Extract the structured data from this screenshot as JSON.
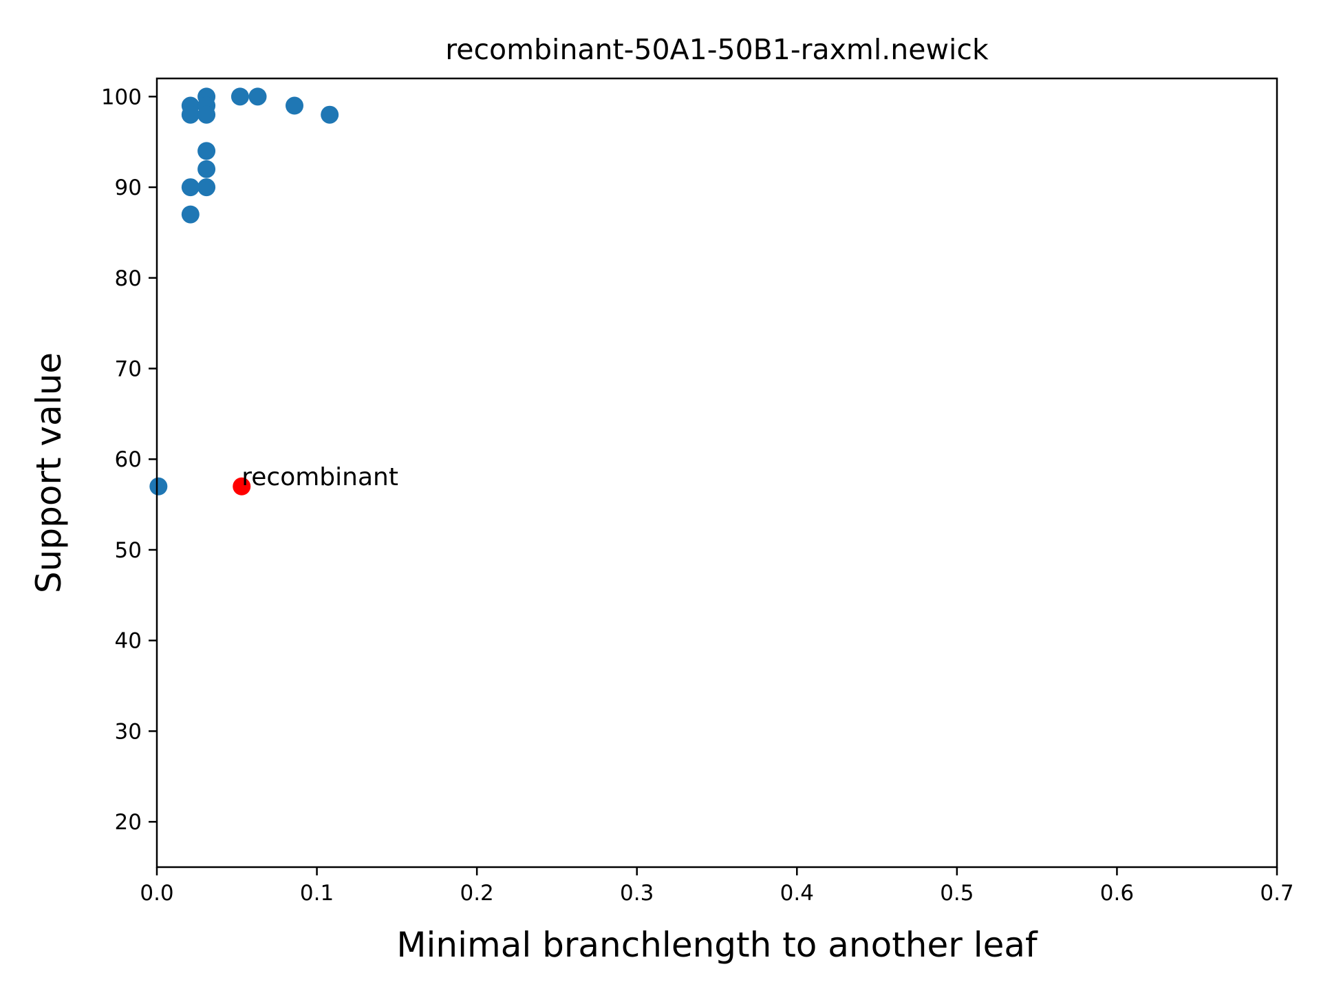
{
  "chart_data": {
    "type": "scatter",
    "title": "recombinant-50A1-50B1-raxml.newick",
    "xlabel": "Minimal branchlength to another leaf",
    "ylabel": "Support value",
    "xlim": [
      0.0,
      0.7
    ],
    "ylim": [
      15,
      102
    ],
    "xticks": [
      "0.0",
      "0.1",
      "0.2",
      "0.3",
      "0.4",
      "0.5",
      "0.6",
      "0.7"
    ],
    "xtick_values": [
      0.0,
      0.1,
      0.2,
      0.3,
      0.4,
      0.5,
      0.6,
      0.7
    ],
    "yticks": [
      "20",
      "30",
      "40",
      "50",
      "60",
      "70",
      "80",
      "90",
      "100"
    ],
    "ytick_values": [
      20,
      30,
      40,
      50,
      60,
      70,
      80,
      90,
      100
    ],
    "grid": false,
    "series": [
      {
        "color": "#1f77b4",
        "points": [
          {
            "x": 0.021,
            "y": 99
          },
          {
            "x": 0.021,
            "y": 98
          },
          {
            "x": 0.031,
            "y": 100
          },
          {
            "x": 0.031,
            "y": 99
          },
          {
            "x": 0.031,
            "y": 98
          },
          {
            "x": 0.052,
            "y": 100
          },
          {
            "x": 0.063,
            "y": 100
          },
          {
            "x": 0.086,
            "y": 99
          },
          {
            "x": 0.108,
            "y": 98
          },
          {
            "x": 0.031,
            "y": 94
          },
          {
            "x": 0.031,
            "y": 92
          },
          {
            "x": 0.031,
            "y": 90
          },
          {
            "x": 0.021,
            "y": 90
          },
          {
            "x": 0.021,
            "y": 87
          },
          {
            "x": 0.001,
            "y": 57
          }
        ]
      },
      {
        "color": "#ff0000",
        "points": [
          {
            "x": 0.053,
            "y": 57
          }
        ]
      }
    ],
    "annotations": [
      {
        "text": "recombinant",
        "x": 0.053,
        "y": 57
      }
    ]
  }
}
